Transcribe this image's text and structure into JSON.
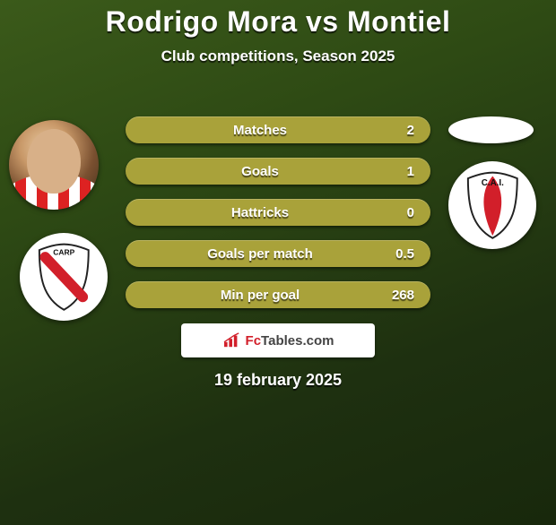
{
  "title": "Rodrigo Mora vs Montiel",
  "title_fontsize": 32,
  "title_color": "#ffffff",
  "subtitle": "Club competitions, Season 2025",
  "subtitle_fontsize": 17,
  "pills": {
    "bg_color": "#a9a23a",
    "label_fontsize": 15,
    "value_fontsize": 15,
    "items": [
      {
        "label": "Matches",
        "value": "2"
      },
      {
        "label": "Goals",
        "value": "1"
      },
      {
        "label": "Hattricks",
        "value": "0"
      },
      {
        "label": "Goals per match",
        "value": "0.5"
      },
      {
        "label": "Min per goal",
        "value": "268"
      }
    ]
  },
  "crest_left": {
    "stripe_color": "#d21f2a",
    "bg": "#ffffff",
    "text": "CARP"
  },
  "crest_right": {
    "stripe_color": "#d21f2a",
    "bg": "#ffffff",
    "text": "C.A.I."
  },
  "badge": {
    "brand_prefix": "Fc",
    "brand_rest": "Tables.com",
    "prefix_color": "#d21f2a",
    "text_color": "#505050"
  },
  "date": "19 february 2025",
  "date_fontsize": 18,
  "background_gradient": [
    "#3b5a1a",
    "#2e4a14",
    "#1e3010",
    "#18280c"
  ]
}
